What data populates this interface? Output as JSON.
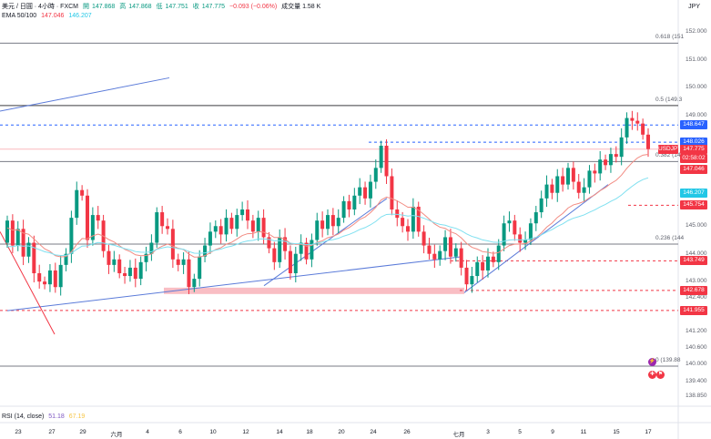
{
  "header": {
    "symbol_line": "美元 / 日圓 · 4小時 · FXCM",
    "open_label": "開",
    "open": "147.868",
    "high_label": "高",
    "high": "147.868",
    "low_label": "低",
    "low": "147.751",
    "close_label": "收",
    "close": "147.775",
    "change": "−0.093 (−0.06%)",
    "volume": "成交量 1.58 K",
    "ema_label": "EMA 50/100",
    "ema50": "147.046",
    "ema100": "146.207"
  },
  "unit": "JPY",
  "rsi": {
    "label": "RSI (14, close)",
    "value": "51.18",
    "ma": "67.19"
  },
  "colors": {
    "up": "#089981",
    "down": "#f23645",
    "ema50": "#f28b82",
    "ema100": "#7fe0f0",
    "trend": "#5b7bd9",
    "level": "#787b86",
    "dashed_blue": "#2962ff",
    "dashed_red": "#f23645",
    "zone": "#f7a3ab"
  },
  "price_labels": [
    "152.000",
    "151.000",
    "150.000",
    "149.000",
    "145.000",
    "144.000",
    "143.000",
    "142.400",
    "141.200",
    "140.600",
    "140.000",
    "139.400",
    "138.850"
  ],
  "fib_labels": [
    {
      "text": "0.618 (151",
      "price": 151.6
    },
    {
      "text": "0.5 (149.3",
      "price": 149.35
    },
    {
      "text": "0.382 (14",
      "price": 147.33
    },
    {
      "text": "0.236 (144",
      "price": 144.35
    },
    {
      "text": "0 (139.88",
      "price": 139.95
    }
  ],
  "tags": [
    {
      "text": "148.647",
      "price": 148.647,
      "color": "#2962ff"
    },
    {
      "text": "148.026",
      "price": 148.026,
      "color": "#2962ff"
    },
    {
      "text": "USDJPY",
      "price": 147.775,
      "color": "#f23645",
      "second": "147.775",
      "third": "02:58:02"
    },
    {
      "text": "147.046",
      "price": 147.046,
      "color": "#f23645"
    },
    {
      "text": "146.207",
      "price": 146.207,
      "color": "#22c7e6"
    },
    {
      "text": "145.754",
      "price": 145.754,
      "color": "#f23645"
    },
    {
      "text": "143.749",
      "price": 143.749,
      "color": "#f23645"
    },
    {
      "text": "142.678",
      "price": 142.678,
      "color": "#f23645"
    },
    {
      "text": "141.955",
      "price": 141.955,
      "color": "#f23645"
    }
  ],
  "dates": [
    "23",
    "27",
    "29",
    "六月",
    "4",
    "6",
    "10",
    "12",
    "14",
    "18",
    "20",
    "24",
    "26",
    "七月",
    "3",
    "5",
    "9",
    "11",
    "15",
    "17"
  ],
  "chart_data": {
    "type": "candlestick",
    "ylim": [
      138.7,
      152.5
    ],
    "candles_close": [
      145.2,
      144.3,
      144.9,
      143.9,
      144.4,
      143.3,
      143.0,
      142.9,
      143.4,
      142.8,
      143.6,
      144.0,
      145.3,
      146.3,
      146.1,
      144.5,
      145.4,
      145.2,
      144.1,
      143.6,
      143.8,
      143.3,
      143.2,
      143.5,
      143.1,
      143.7,
      144.0,
      144.4,
      145.5,
      145.0,
      144.9,
      143.8,
      143.6,
      143.8,
      142.8,
      143.1,
      143.9,
      144.3,
      144.8,
      145.0,
      144.7,
      145.3,
      144.9,
      145.4,
      145.6,
      145.2,
      144.8,
      145.3,
      144.6,
      144.2,
      143.7,
      144.6,
      144.1,
      143.3,
      144.0,
      144.4,
      143.8,
      144.5,
      145.2,
      144.9,
      145.4,
      145.0,
      145.3,
      145.9,
      145.6,
      146.1,
      146.4,
      146.0,
      146.6,
      147.1,
      147.9,
      146.8,
      145.6,
      145.3,
      145.0,
      144.8,
      145.7,
      144.8,
      144.3,
      144.0,
      143.8,
      144.1,
      144.6,
      143.9,
      144.2,
      143.5,
      142.9,
      143.2,
      143.7,
      143.4,
      143.9,
      143.7,
      144.3,
      145.1,
      145.2,
      144.7,
      144.4,
      144.5,
      145.1,
      145.5,
      146.0,
      146.5,
      146.2,
      146.8,
      146.5,
      147.1,
      146.6,
      146.2,
      146.4,
      147.0,
      146.9,
      147.4,
      147.2,
      147.6,
      147.5,
      148.2,
      148.9,
      148.8,
      148.7,
      148.3,
      147.78
    ],
    "ema50_last": 147.046,
    "ema100_last": 146.207,
    "rsi_last": 51.18
  }
}
